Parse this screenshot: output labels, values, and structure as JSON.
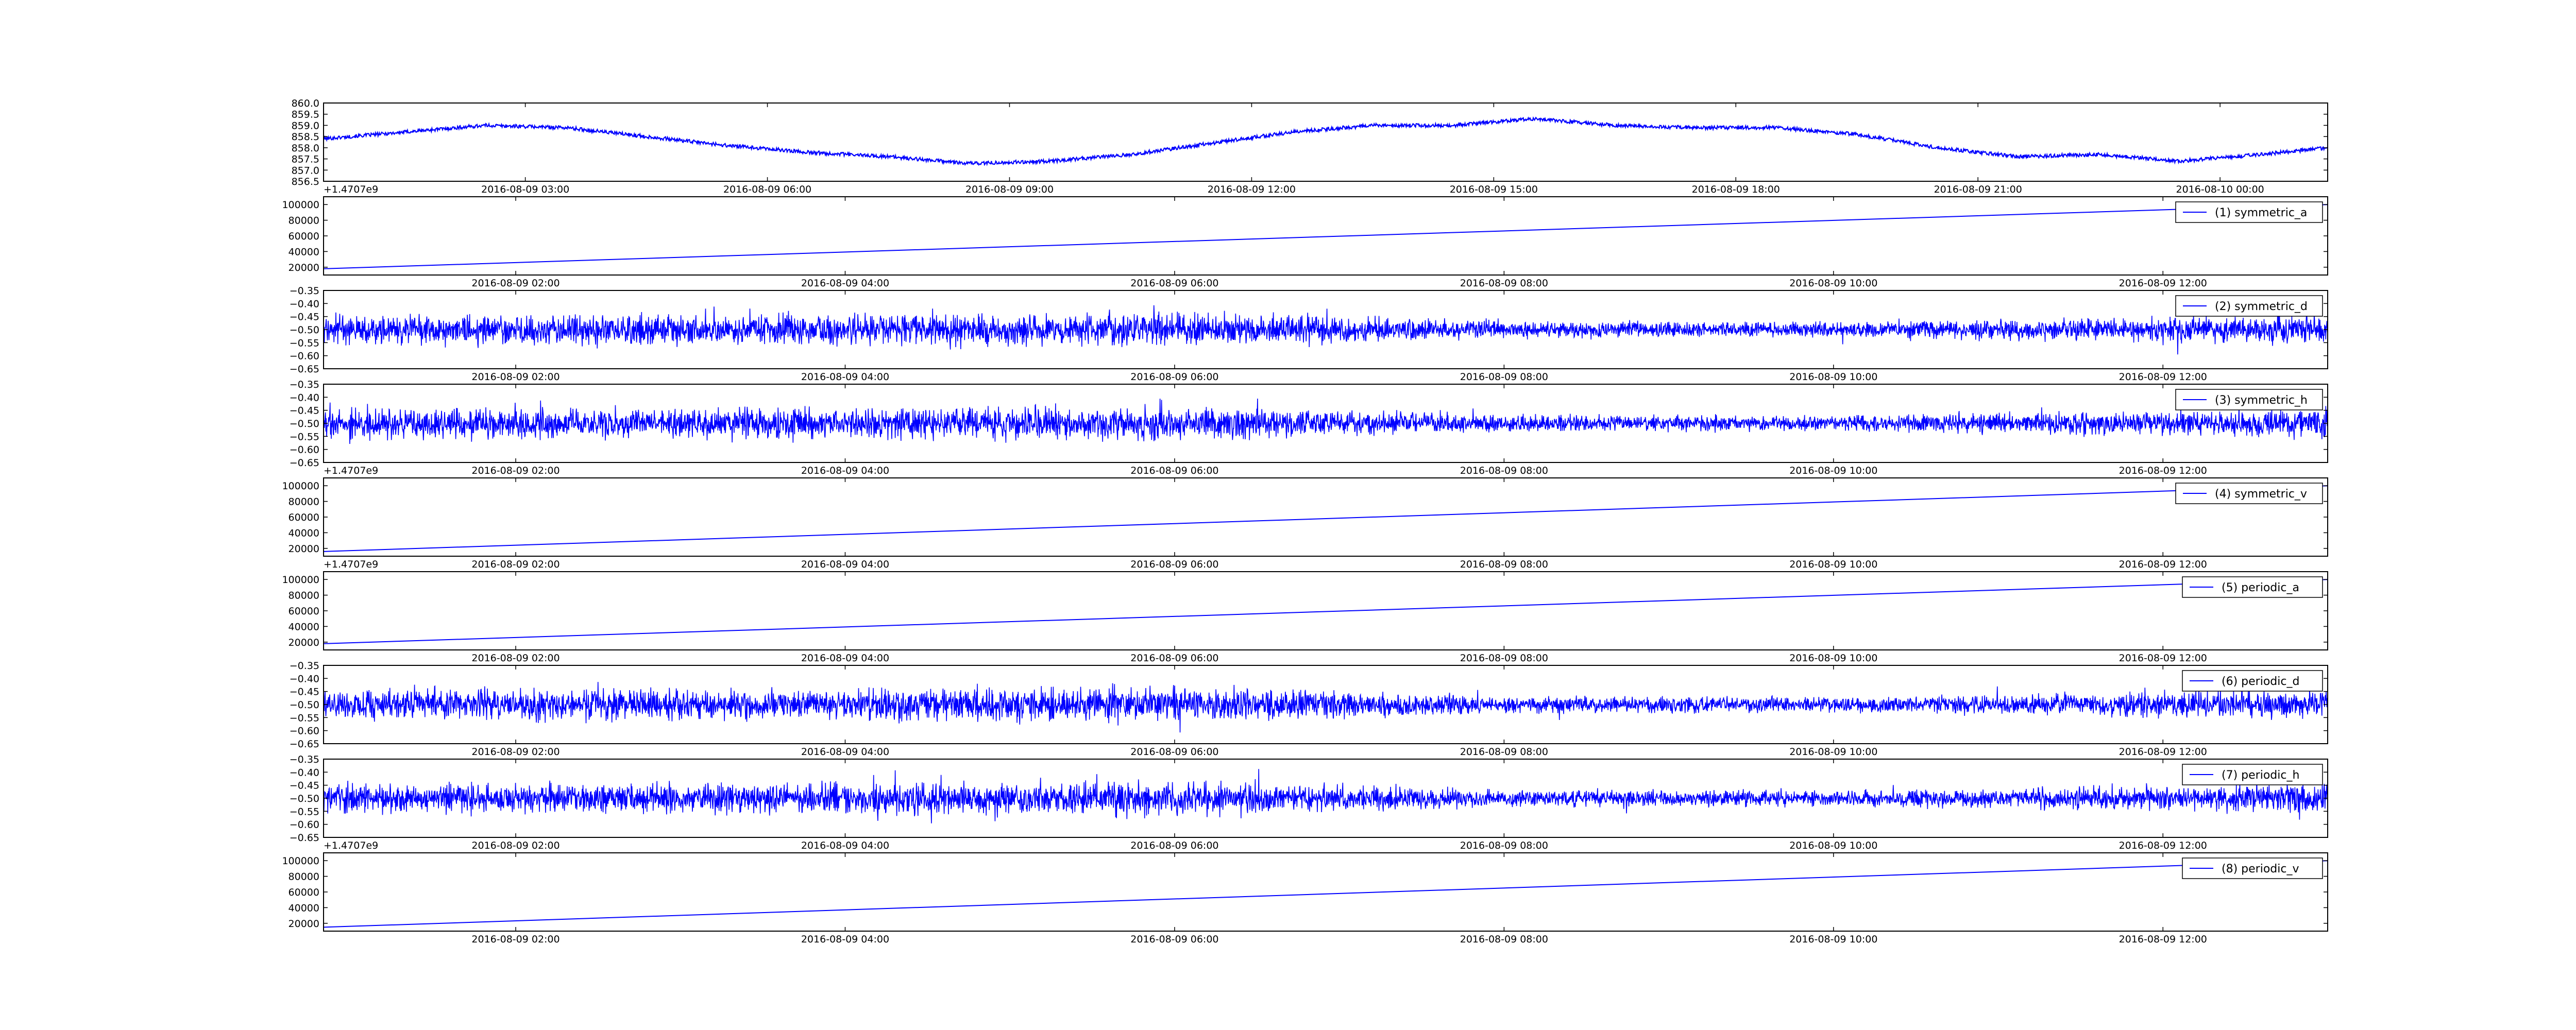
{
  "chart_data": [
    {
      "type": "line",
      "title": "",
      "xlabel": "",
      "ylabel": "",
      "legend": null,
      "line_color": "#0000ff",
      "grid": false,
      "ylim": [
        856.5,
        860.0
      ],
      "yticks": [
        "860.0",
        "859.5",
        "859.0",
        "858.5",
        "858.0",
        "857.5",
        "857.0",
        "856.5"
      ],
      "xlim": [
        "2016-08-09 00:30",
        "2016-08-10 01:20"
      ],
      "xticks": [
        "2016-08-09 03:00",
        "2016-08-09 06:00",
        "2016-08-09 09:00",
        "2016-08-09 12:00",
        "2016-08-09 15:00",
        "2016-08-09 18:00",
        "2016-08-09 21:00",
        "2016-08-10 00:00"
      ],
      "offset_text": "+1.4707e9",
      "series": [
        {
          "kind": "noisy",
          "noise": 0.08,
          "x": [
            "2016-08-09 00:30",
            "2016-08-09 01:30",
            "2016-08-09 02:30",
            "2016-08-09 03:30",
            "2016-08-09 04:30",
            "2016-08-09 05:30",
            "2016-08-09 06:30",
            "2016-08-09 07:30",
            "2016-08-09 08:30",
            "2016-08-09 09:30",
            "2016-08-09 10:30",
            "2016-08-09 11:30",
            "2016-08-09 12:30",
            "2016-08-09 13:30",
            "2016-08-09 14:30",
            "2016-08-09 15:30",
            "2016-08-09 16:30",
            "2016-08-09 17:30",
            "2016-08-09 18:30",
            "2016-08-09 19:30",
            "2016-08-09 20:30",
            "2016-08-09 21:30",
            "2016-08-09 22:30",
            "2016-08-09 23:30",
            "2016-08-10 00:30",
            "2016-08-10 01:20"
          ],
          "y": [
            858.4,
            858.7,
            859.0,
            858.9,
            858.5,
            858.1,
            857.8,
            857.6,
            857.3,
            857.4,
            857.7,
            858.2,
            858.7,
            859.0,
            859.0,
            859.3,
            859.0,
            858.9,
            858.9,
            858.6,
            858.0,
            857.6,
            857.7,
            857.4,
            857.7,
            858.0
          ]
        }
      ]
    },
    {
      "type": "line",
      "title": "",
      "xlabel": "",
      "ylabel": "",
      "legend": "(1) symmetric_a",
      "legend_position": "top-right",
      "line_color": "#0000ff",
      "grid": false,
      "ylim": [
        10000,
        110000
      ],
      "yticks": [
        "100000",
        "80000",
        "60000",
        "40000",
        "20000"
      ],
      "xlim": [
        "2016-08-09 00:50",
        "2016-08-09 13:00"
      ],
      "xticks": [
        "2016-08-09 02:00",
        "2016-08-09 04:00",
        "2016-08-09 06:00",
        "2016-08-09 08:00",
        "2016-08-09 10:00",
        "2016-08-09 12:00"
      ],
      "offset_text": "",
      "series": [
        {
          "kind": "linear",
          "x": [
            "2016-08-09 00:50",
            "2016-08-09 13:00"
          ],
          "y": [
            18000,
            100000
          ]
        }
      ]
    },
    {
      "type": "line",
      "title": "",
      "xlabel": "",
      "ylabel": "",
      "legend": "(2) symmetric_d",
      "legend_position": "top-right",
      "line_color": "#0000ff",
      "grid": false,
      "ylim": [
        -0.65,
        -0.35
      ],
      "yticks": [
        "−0.35",
        "−0.40",
        "−0.45",
        "−0.50",
        "−0.55",
        "−0.60",
        "−0.65"
      ],
      "xlim": [
        "2016-08-09 00:50",
        "2016-08-09 13:00"
      ],
      "xticks": [
        "2016-08-09 02:00",
        "2016-08-09 04:00",
        "2016-08-09 06:00",
        "2016-08-09 08:00",
        "2016-08-09 10:00",
        "2016-08-09 12:00"
      ],
      "offset_text": "",
      "series": [
        {
          "kind": "noise_band",
          "center": -0.5,
          "x": [
            "2016-08-09 00:50",
            "2016-08-09 03:00",
            "2016-08-09 06:00",
            "2016-08-09 08:00",
            "2016-08-09 10:00",
            "2016-08-09 12:00",
            "2016-08-09 13:00"
          ],
          "amplitude": [
            0.06,
            0.06,
            0.07,
            0.035,
            0.03,
            0.05,
            0.06
          ]
        }
      ]
    },
    {
      "type": "line",
      "title": "",
      "xlabel": "",
      "ylabel": "",
      "legend": "(3) symmetric_h",
      "legend_position": "top-right",
      "line_color": "#0000ff",
      "grid": false,
      "ylim": [
        -0.65,
        -0.35
      ],
      "yticks": [
        "−0.35",
        "−0.40",
        "−0.45",
        "−0.50",
        "−0.55",
        "−0.60",
        "−0.65"
      ],
      "xlim": [
        "2016-08-09 00:50",
        "2016-08-09 13:00"
      ],
      "xticks": [
        "2016-08-09 02:00",
        "2016-08-09 04:00",
        "2016-08-09 06:00",
        "2016-08-09 08:00",
        "2016-08-09 10:00",
        "2016-08-09 12:00"
      ],
      "offset_text": "+1.4707e9",
      "series": [
        {
          "kind": "noise_band",
          "center": -0.5,
          "x": [
            "2016-08-09 00:50",
            "2016-08-09 03:00",
            "2016-08-09 06:00",
            "2016-08-09 08:00",
            "2016-08-09 10:00",
            "2016-08-09 12:00",
            "2016-08-09 13:00"
          ],
          "amplitude": [
            0.06,
            0.06,
            0.07,
            0.035,
            0.03,
            0.05,
            0.06
          ]
        }
      ]
    },
    {
      "type": "line",
      "title": "",
      "xlabel": "",
      "ylabel": "",
      "legend": "(4) symmetric_v",
      "legend_position": "top-right",
      "line_color": "#0000ff",
      "grid": false,
      "ylim": [
        10000,
        110000
      ],
      "yticks": [
        "100000",
        "80000",
        "60000",
        "40000",
        "20000"
      ],
      "xlim": [
        "2016-08-09 00:50",
        "2016-08-09 13:00"
      ],
      "xticks": [
        "2016-08-09 02:00",
        "2016-08-09 04:00",
        "2016-08-09 06:00",
        "2016-08-09 08:00",
        "2016-08-09 10:00",
        "2016-08-09 12:00"
      ],
      "offset_text": "+1.4707e9",
      "series": [
        {
          "kind": "linear",
          "x": [
            "2016-08-09 00:50",
            "2016-08-09 13:00"
          ],
          "y": [
            16000,
            100000
          ]
        }
      ]
    },
    {
      "type": "line",
      "title": "",
      "xlabel": "",
      "ylabel": "",
      "legend": "(5) periodic_a",
      "legend_position": "top-right",
      "line_color": "#0000ff",
      "grid": false,
      "ylim": [
        10000,
        110000
      ],
      "yticks": [
        "100000",
        "80000",
        "60000",
        "40000",
        "20000"
      ],
      "xlim": [
        "2016-08-09 00:50",
        "2016-08-09 13:00"
      ],
      "xticks": [
        "2016-08-09 02:00",
        "2016-08-09 04:00",
        "2016-08-09 06:00",
        "2016-08-09 08:00",
        "2016-08-09 10:00",
        "2016-08-09 12:00"
      ],
      "offset_text": "",
      "series": [
        {
          "kind": "linear",
          "x": [
            "2016-08-09 00:50",
            "2016-08-09 13:00"
          ],
          "y": [
            18000,
            100000
          ]
        }
      ]
    },
    {
      "type": "line",
      "title": "",
      "xlabel": "",
      "ylabel": "",
      "legend": "(6) periodic_d",
      "legend_position": "top-right",
      "line_color": "#0000ff",
      "grid": false,
      "ylim": [
        -0.65,
        -0.35
      ],
      "yticks": [
        "−0.35",
        "−0.40",
        "−0.45",
        "−0.50",
        "−0.55",
        "−0.60",
        "−0.65"
      ],
      "xlim": [
        "2016-08-09 00:50",
        "2016-08-09 13:00"
      ],
      "xticks": [
        "2016-08-09 02:00",
        "2016-08-09 04:00",
        "2016-08-09 06:00",
        "2016-08-09 08:00",
        "2016-08-09 10:00",
        "2016-08-09 12:00"
      ],
      "offset_text": "",
      "series": [
        {
          "kind": "noise_band",
          "center": -0.5,
          "x": [
            "2016-08-09 00:50",
            "2016-08-09 03:00",
            "2016-08-09 06:00",
            "2016-08-09 08:00",
            "2016-08-09 10:00",
            "2016-08-09 12:00",
            "2016-08-09 13:00"
          ],
          "amplitude": [
            0.06,
            0.06,
            0.07,
            0.035,
            0.03,
            0.05,
            0.06
          ]
        }
      ]
    },
    {
      "type": "line",
      "title": "",
      "xlabel": "",
      "ylabel": "",
      "legend": "(7) periodic_h",
      "legend_position": "top-right",
      "line_color": "#0000ff",
      "grid": false,
      "ylim": [
        -0.65,
        -0.35
      ],
      "yticks": [
        "−0.35",
        "−0.40",
        "−0.45",
        "−0.50",
        "−0.55",
        "−0.60",
        "−0.65"
      ],
      "xlim": [
        "2016-08-09 00:50",
        "2016-08-09 13:00"
      ],
      "xticks": [
        "2016-08-09 02:00",
        "2016-08-09 04:00",
        "2016-08-09 06:00",
        "2016-08-09 08:00",
        "2016-08-09 10:00",
        "2016-08-09 12:00"
      ],
      "offset_text": "+1.4707e9",
      "series": [
        {
          "kind": "noise_band",
          "center": -0.5,
          "x": [
            "2016-08-09 00:50",
            "2016-08-09 03:00",
            "2016-08-09 06:00",
            "2016-08-09 08:00",
            "2016-08-09 10:00",
            "2016-08-09 12:00",
            "2016-08-09 13:00"
          ],
          "amplitude": [
            0.06,
            0.06,
            0.07,
            0.035,
            0.03,
            0.05,
            0.06
          ]
        }
      ]
    },
    {
      "type": "line",
      "title": "",
      "xlabel": "",
      "ylabel": "",
      "legend": "(8) periodic_v",
      "legend_position": "top-right",
      "line_color": "#0000ff",
      "grid": false,
      "ylim": [
        10000,
        110000
      ],
      "yticks": [
        "100000",
        "80000",
        "60000",
        "40000",
        "20000"
      ],
      "xlim": [
        "2016-08-09 00:50",
        "2016-08-09 13:00"
      ],
      "xticks": [
        "2016-08-09 02:00",
        "2016-08-09 04:00",
        "2016-08-09 06:00",
        "2016-08-09 08:00",
        "2016-08-09 10:00",
        "2016-08-09 12:00"
      ],
      "offset_text": "",
      "series": [
        {
          "kind": "linear",
          "x": [
            "2016-08-09 00:50",
            "2016-08-09 13:00"
          ],
          "y": [
            15000,
            100000
          ]
        }
      ]
    }
  ]
}
